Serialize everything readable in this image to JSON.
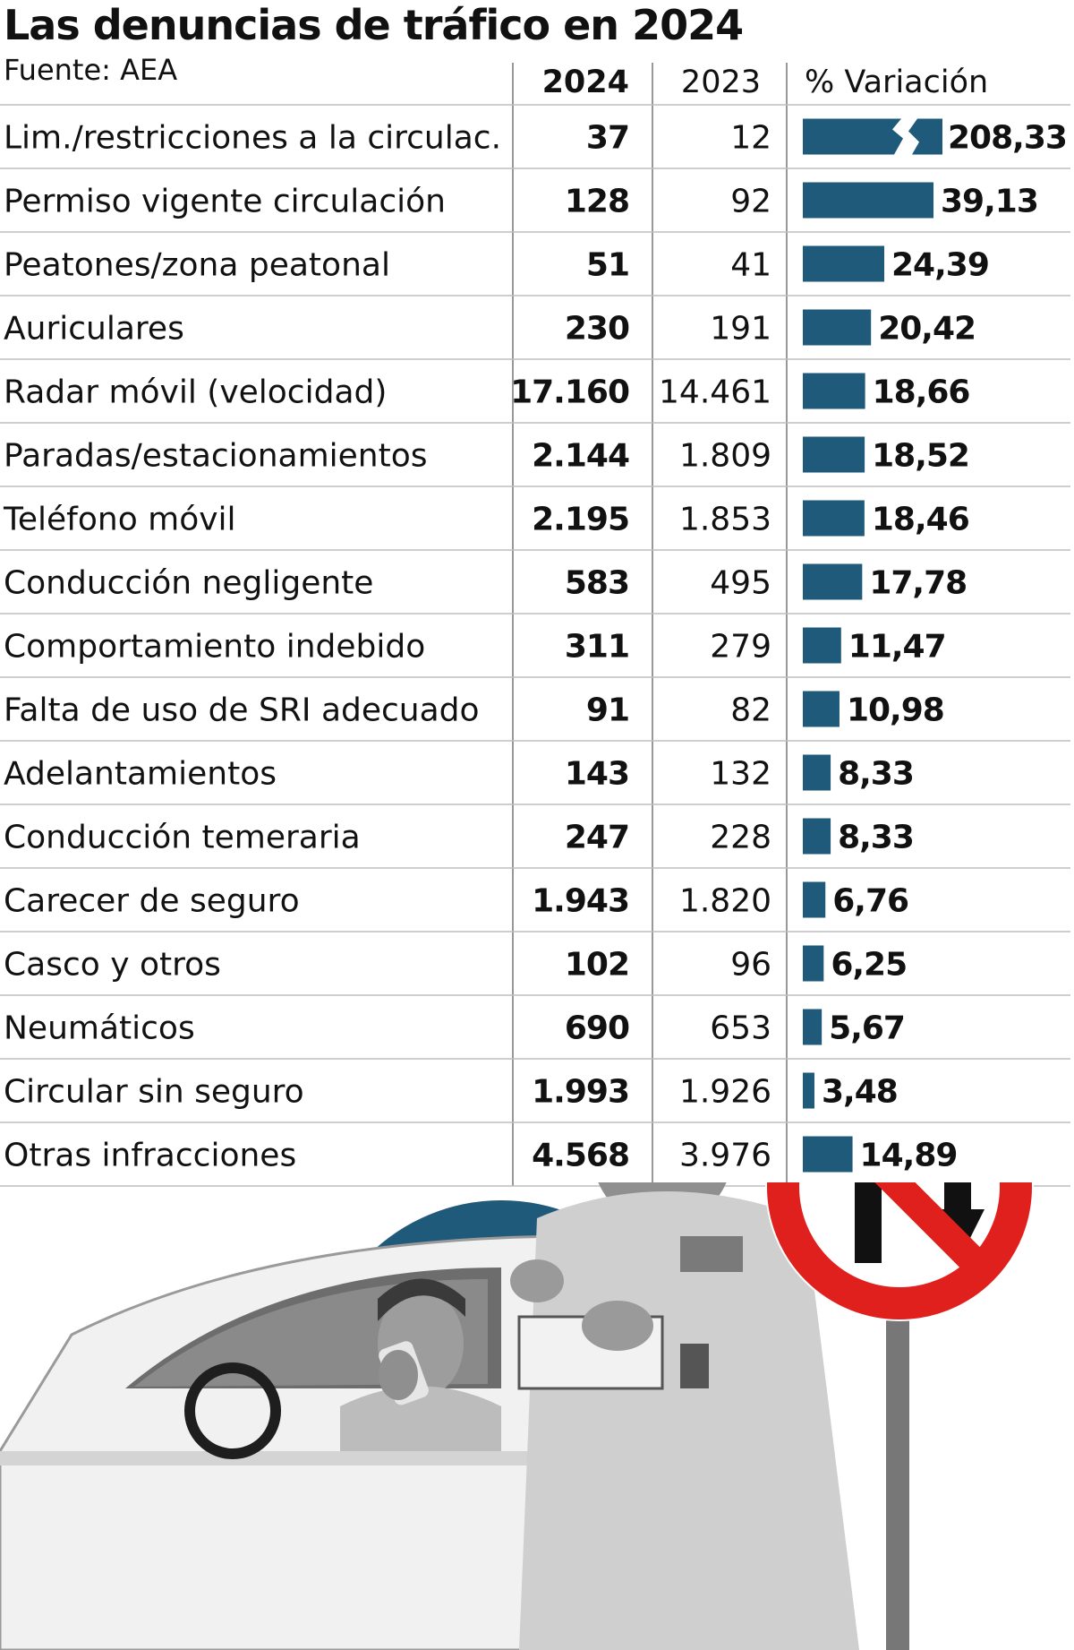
{
  "header": {
    "title": "Las denuncias de tráfico en 2024",
    "source": "Fuente: AEA"
  },
  "columns": {
    "col_2024": "2024",
    "col_2023": "2023",
    "col_variation": "% Variación"
  },
  "chart_data": {
    "type": "table",
    "title": "Las denuncias de tráfico en 2024",
    "subtitle": "Fuente: AEA",
    "columns": [
      "2024",
      "2023",
      "% Variación"
    ],
    "bar_column": "% Variación",
    "bar_axis_break": true,
    "colors": {
      "bar": "#1f5a7a",
      "rule": "#bdbdbd"
    },
    "rows": [
      {
        "label": "Lim./restricciones a la circulac.",
        "v2024": "37",
        "v2023": "12",
        "variation": "208,33",
        "variation_value": 208.33,
        "broken": true
      },
      {
        "label": "Permiso vigente circulación",
        "v2024": "128",
        "v2023": "92",
        "variation": "39,13",
        "variation_value": 39.13
      },
      {
        "label": "Peatones/zona peatonal",
        "v2024": "51",
        "v2023": "41",
        "variation": "24,39",
        "variation_value": 24.39
      },
      {
        "label": "Auriculares",
        "v2024": "230",
        "v2023": "191",
        "variation": "20,42",
        "variation_value": 20.42
      },
      {
        "label": "Radar móvil (velocidad)",
        "v2024": "17.160",
        "v2023": "14.461",
        "variation": "18,66",
        "variation_value": 18.66
      },
      {
        "label": "Paradas/estacionamientos",
        "v2024": "2.144",
        "v2023": "1.809",
        "variation": "18,52",
        "variation_value": 18.52
      },
      {
        "label": "Teléfono móvil",
        "v2024": "2.195",
        "v2023": "1.853",
        "variation": "18,46",
        "variation_value": 18.46
      },
      {
        "label": "Conducción negligente",
        "v2024": "583",
        "v2023": "495",
        "variation": "17,78",
        "variation_value": 17.78
      },
      {
        "label": "Comportamiento indebido",
        "v2024": "311",
        "v2023": "279",
        "variation": "11,47",
        "variation_value": 11.47
      },
      {
        "label": "Falta de uso de SRI adecuado",
        "v2024": "91",
        "v2023": "82",
        "variation": "10,98",
        "variation_value": 10.98
      },
      {
        "label": "Adelantamientos",
        "v2024": "143",
        "v2023": "132",
        "variation": "8,33",
        "variation_value": 8.33
      },
      {
        "label": "Conducción temeraria",
        "v2024": "247",
        "v2023": "228",
        "variation": "8,33",
        "variation_value": 8.33
      },
      {
        "label": "Carecer de seguro",
        "v2024": "1.943",
        "v2023": "1.820",
        "variation": "6,76",
        "variation_value": 6.76
      },
      {
        "label": "Casco y otros",
        "v2024": "102",
        "v2023": "96",
        "variation": "6,25",
        "variation_value": 6.25
      },
      {
        "label": "Neumáticos",
        "v2024": "690",
        "v2023": "653",
        "variation": "5,67",
        "variation_value": 5.67
      },
      {
        "label": "Circular sin seguro",
        "v2024": "1.993",
        "v2023": "1.926",
        "variation": "3,48",
        "variation_value": 3.48
      },
      {
        "label": "Otras infracciones",
        "v2024": "4.568",
        "v2023": "3.976",
        "variation": "14,89",
        "variation_value": 14.89
      }
    ]
  },
  "illustration": {
    "traffic_sign": "no-u-turn-sign-icon",
    "colors": {
      "circle": "#1f5a7a",
      "sign_red": "#e0201c"
    }
  }
}
